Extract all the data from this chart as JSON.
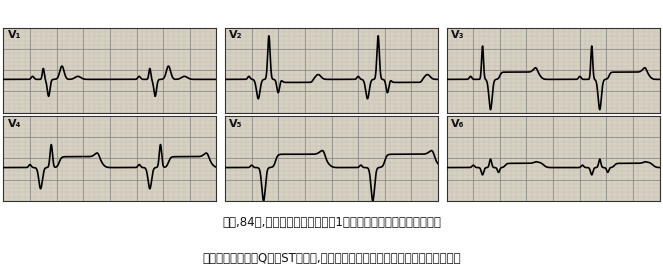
{
  "title_line1": "女性,84岁,前间壁、前壁心肌梗死1年余。显示完全性右束支阻滞、",
  "title_line2": "前间壁及前壁异常Q波伴ST段抬高,提示室壁瘤形成（被心脏超声波证实）心电图",
  "leads": [
    "V₁",
    "V₂",
    "V₃",
    "V₄",
    "V₅",
    "V₆"
  ],
  "grid_minor_color": "#bbbbbb",
  "grid_major_color": "#888888",
  "bg_color": "#d8d0c0",
  "line_color": "#000000",
  "text_color": "#111111",
  "fig_bg": "#ffffff",
  "caption_fontsize": 8.5
}
